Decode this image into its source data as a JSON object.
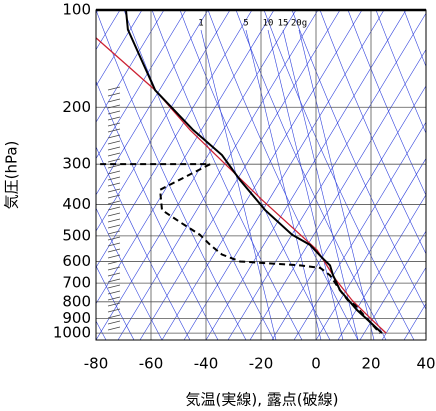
{
  "chart_data": {
    "type": "skewt",
    "xlabel": "気温(実線), 露点(破線)",
    "ylabel": "気圧(hPa)",
    "xlim": [
      -80,
      40
    ],
    "xticks": [
      -80,
      -60,
      -40,
      -20,
      0,
      20,
      40
    ],
    "ylim": [
      100,
      1050
    ],
    "yticks": [
      100,
      200,
      300,
      400,
      500,
      600,
      700,
      800,
      900,
      1000
    ],
    "log_y": true,
    "invert_y": true,
    "grid": true,
    "mixing_ratio_labels": [
      "1",
      "5",
      "10",
      "15",
      "20g"
    ],
    "series": [
      {
        "color": "#cc2233",
        "dashed": false,
        "x": [
          -80,
          -58.5,
          -45.8,
          -19.6,
          0.4,
          7.3,
          13.1,
          20.4,
          25.5
        ],
        "y": [
          122,
          177,
          235,
          387,
          553,
          685,
          791,
          910,
          1000
        ]
      },
      {
        "color": "#000000",
        "dashed": false,
        "x": [
          -69.1,
          -68.4,
          -58.5,
          -44.7,
          -34.2,
          -27.6,
          -18.5,
          -8.7,
          -2.2,
          2.2,
          5.1,
          6.2,
          8.7,
          14.9,
          19.6,
          24
        ],
        "y": [
          100,
          115,
          177,
          235,
          281,
          336,
          416,
          496,
          533,
          584,
          617,
          662,
          736,
          848,
          923,
          1000
        ]
      },
      {
        "color": "#000000",
        "dashed": true,
        "x": [
          -78.5,
          -38.5,
          -56.7,
          -56,
          -49.5,
          -42.2,
          -38.5,
          -34.2,
          -27.6,
          -5.8,
          1.5,
          5.1,
          8.7,
          11.6,
          14.2,
          19.6,
          23.3
        ],
        "y": [
          300,
          300,
          360,
          416,
          453,
          496,
          533,
          571,
          600,
          617,
          628,
          662,
          736,
          791,
          819,
          923,
          1000
        ]
      }
    ]
  }
}
